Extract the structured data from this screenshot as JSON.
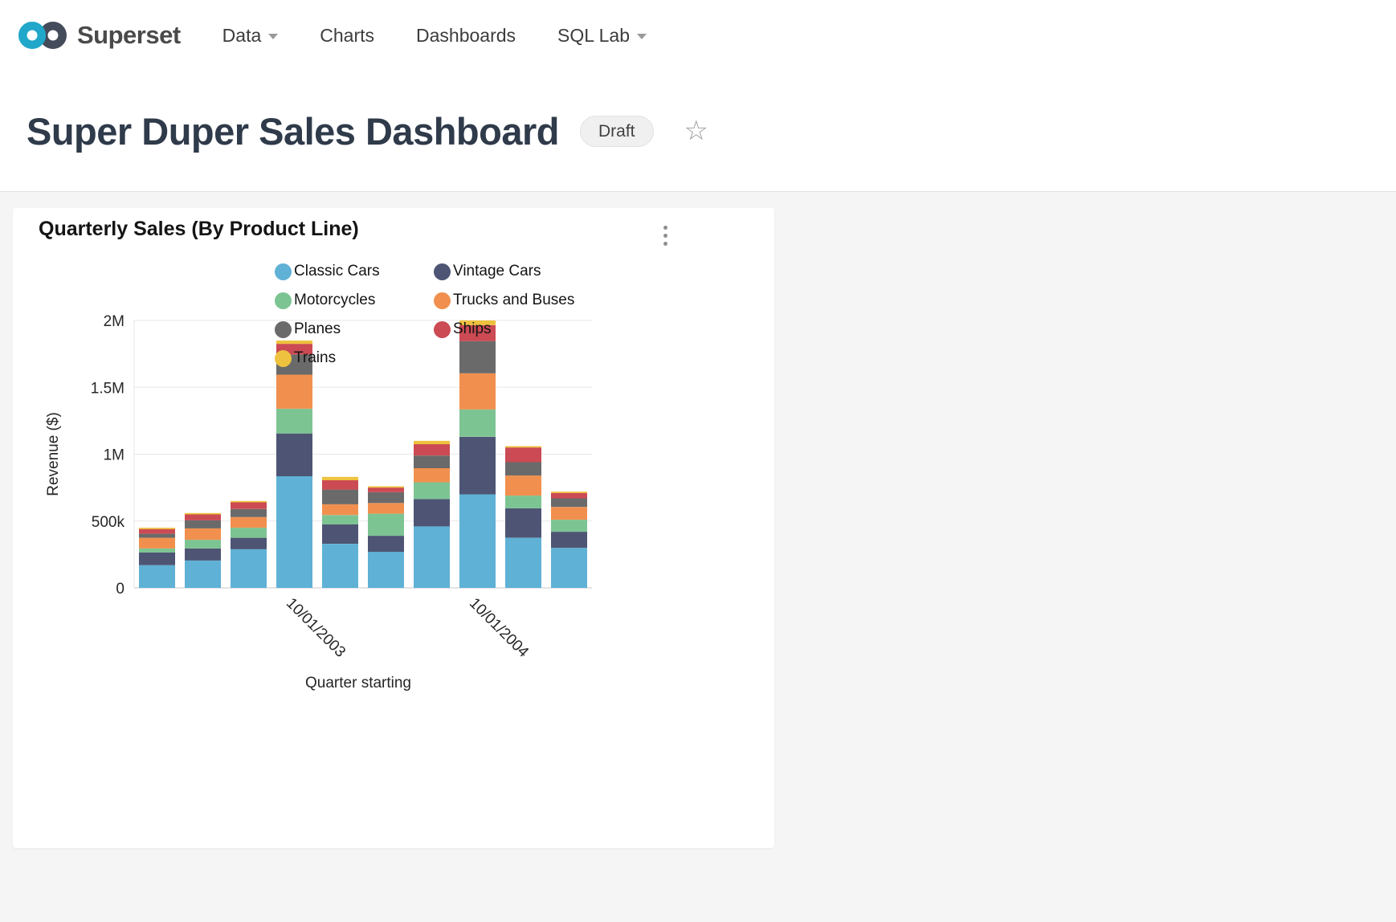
{
  "brand": {
    "name": "Superset",
    "logo_icon": "superset-infinity"
  },
  "nav": {
    "items": [
      {
        "label": "Data",
        "has_caret": true
      },
      {
        "label": "Charts",
        "has_caret": false
      },
      {
        "label": "Dashboards",
        "has_caret": false
      },
      {
        "label": "SQL Lab",
        "has_caret": true
      }
    ],
    "caret_icon": "chevron-down"
  },
  "header": {
    "title": "Super Duper Sales Dashboard",
    "status_badge": "Draft",
    "favorite_icon": "star-outline"
  },
  "card": {
    "title": "Quarterly Sales (By Product Line)",
    "menu_icon": "kebab-vertical"
  },
  "chart_data": {
    "type": "bar",
    "stacked": true,
    "title": "Quarterly Sales (By Product Line)",
    "xlabel": "Quarter starting",
    "ylabel": "Revenue ($)",
    "ylim": [
      0,
      2000000
    ],
    "grid": true,
    "legend_position": "top",
    "y_ticks": [
      {
        "value": 0,
        "label": "0"
      },
      {
        "value": 500000,
        "label": "500k"
      },
      {
        "value": 1000000,
        "label": "1M"
      },
      {
        "value": 1500000,
        "label": "1.5M"
      },
      {
        "value": 2000000,
        "label": "2M"
      }
    ],
    "categories": [
      "",
      "",
      "",
      "10/01/2003",
      "",
      "",
      "",
      "10/01/2004",
      "",
      ""
    ],
    "series": [
      {
        "name": "Classic Cars",
        "color": "#5FB1D5",
        "values": [
          170000,
          205000,
          290000,
          835000,
          330000,
          270000,
          460000,
          700000,
          375000,
          300000
        ]
      },
      {
        "name": "Vintage Cars",
        "color": "#4E5574",
        "values": [
          95000,
          90000,
          85000,
          320000,
          145000,
          120000,
          205000,
          430000,
          220000,
          120000
        ]
      },
      {
        "name": "Motorcycles",
        "color": "#7DC493",
        "values": [
          30000,
          65000,
          75000,
          185000,
          70000,
          165000,
          125000,
          205000,
          95000,
          90000
        ]
      },
      {
        "name": "Trucks and Buses",
        "color": "#F1904E",
        "values": [
          80000,
          85000,
          80000,
          255000,
          80000,
          80000,
          105000,
          270000,
          150000,
          95000
        ]
      },
      {
        "name": "Planes",
        "color": "#6A6A6A",
        "values": [
          30000,
          60000,
          60000,
          150000,
          110000,
          80000,
          95000,
          240000,
          100000,
          65000
        ]
      },
      {
        "name": "Ships",
        "color": "#CB4A53",
        "values": [
          35000,
          45000,
          50000,
          80000,
          70000,
          35000,
          85000,
          120000,
          110000,
          40000
        ]
      },
      {
        "name": "Trains",
        "color": "#EEC23E",
        "values": [
          10000,
          10000,
          10000,
          25000,
          25000,
          10000,
          25000,
          35000,
          10000,
          10000
        ]
      }
    ]
  }
}
